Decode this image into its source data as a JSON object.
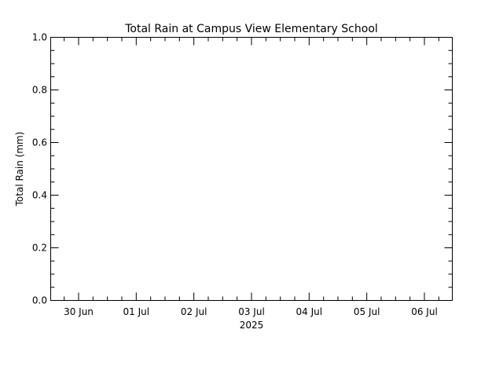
{
  "chart_data": {
    "type": "line",
    "title": "Total Rain at Campus View Elementary School",
    "ylabel": "Total Rain (mm)",
    "xlabel": "2025",
    "ylim": [
      0.0,
      1.0
    ],
    "yticks": [
      "0.0",
      "0.2",
      "0.4",
      "0.6",
      "0.8",
      "1.0"
    ],
    "ytick_values": [
      0.0,
      0.2,
      0.4,
      0.6,
      0.8,
      1.0
    ],
    "xlim": [
      "2025-06-29T17:00",
      "2025-07-06T12:00"
    ],
    "xticks": [
      {
        "label": "30 Jun",
        "date": "2025-06-30T12:00"
      },
      {
        "label": "01 Jul",
        "date": "2025-07-01T12:00"
      },
      {
        "label": "02 Jul",
        "date": "2025-07-02T12:00"
      },
      {
        "label": "03 Jul",
        "date": "2025-07-03T12:00"
      },
      {
        "label": "04 Jul",
        "date": "2025-07-04T12:00"
      },
      {
        "label": "05 Jul",
        "date": "2025-07-05T12:00"
      },
      {
        "label": "06 Jul",
        "date": "2025-07-06T12:00"
      }
    ],
    "grid": false,
    "series": [],
    "colors": {
      "axes": "#000000",
      "background": "#ffffff"
    }
  }
}
